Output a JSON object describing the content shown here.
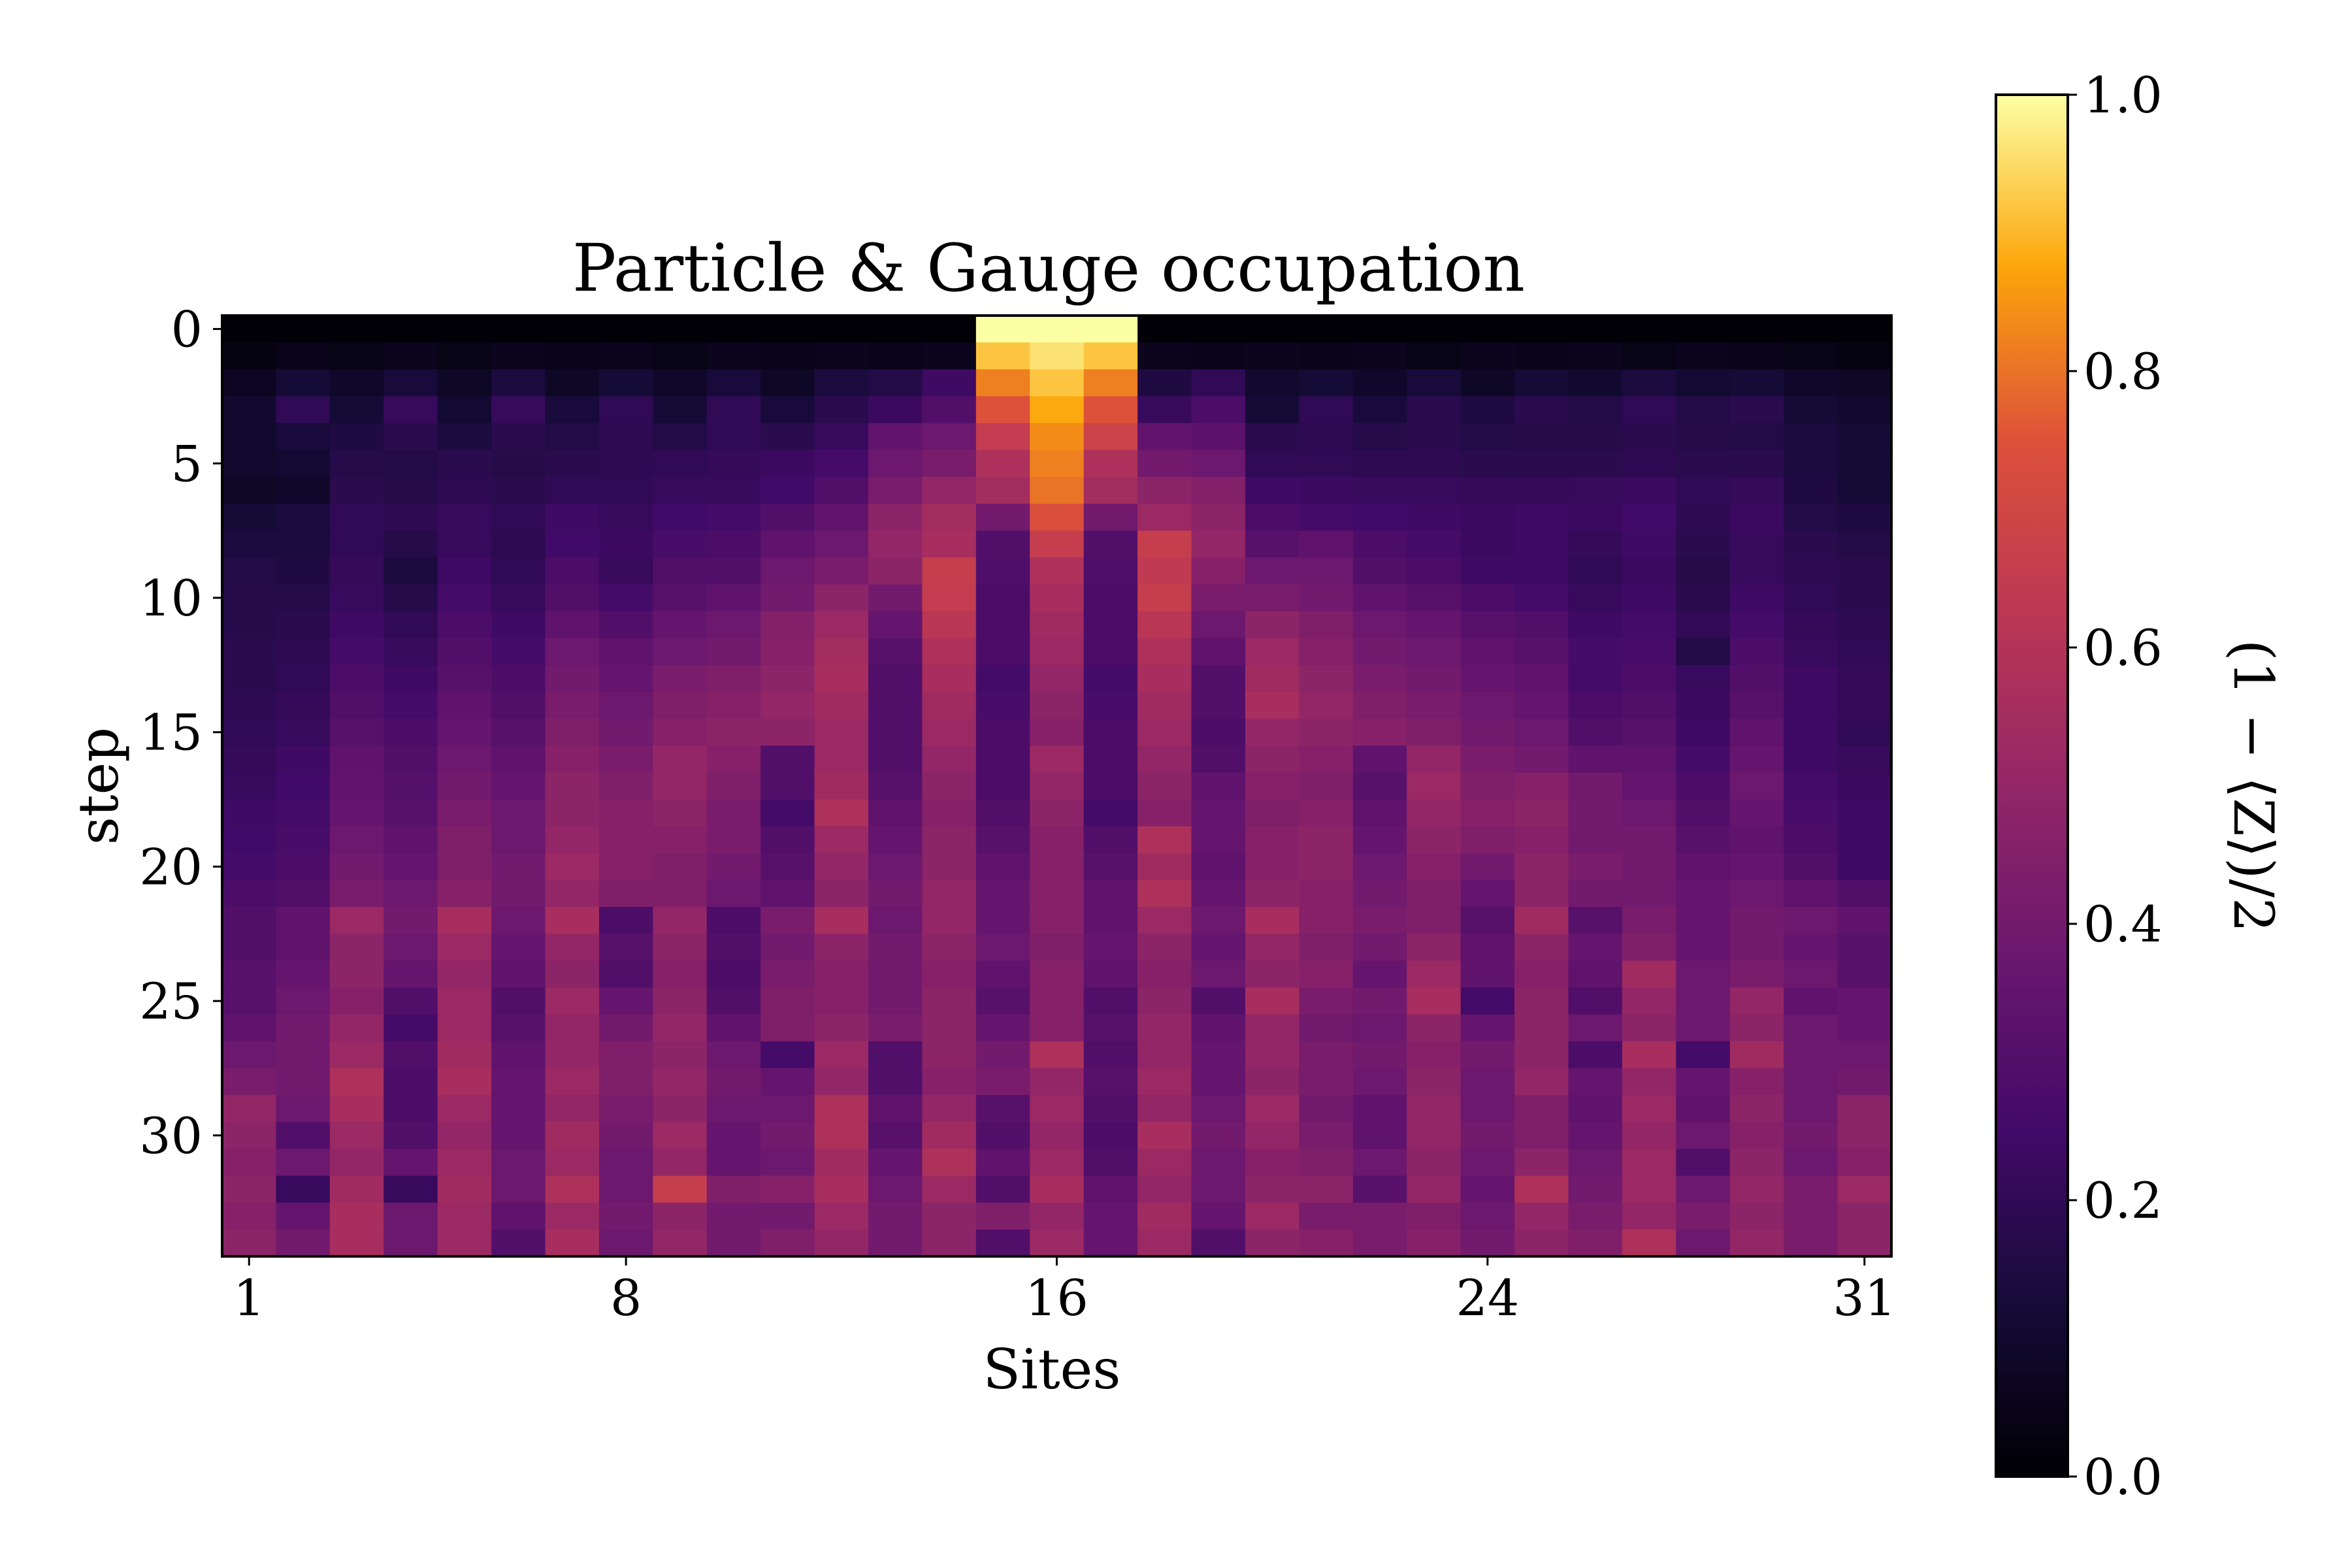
{
  "chart_data": {
    "type": "heatmap",
    "title": "Particle & Gauge occupation",
    "xlabel": "Sites",
    "ylabel": "step",
    "colorbar_label": "(1 − ⟨Z⟩)/2",
    "colormap": "inferno",
    "vmin": 0.0,
    "vmax": 1.0,
    "n_sites": 31,
    "n_steps": 35,
    "x_ticks": [
      1,
      8,
      16,
      24,
      31
    ],
    "y_ticks": [
      0,
      5,
      10,
      15,
      20,
      25,
      30
    ],
    "colorbar_ticks": [
      "0.0",
      "0.2",
      "0.4",
      "0.6",
      "0.8",
      "1.0"
    ],
    "rows": [
      [
        0.01,
        0.01,
        0.01,
        0.01,
        0.01,
        0.01,
        0.01,
        0.01,
        0.01,
        0.01,
        0.01,
        0.01,
        0.01,
        0.01,
        1.0,
        1.0,
        1.0,
        0.01,
        0.01,
        0.01,
        0.01,
        0.01,
        0.01,
        0.01,
        0.01,
        0.01,
        0.01,
        0.01,
        0.01,
        0.01,
        0.01
      ],
      [
        0.03,
        0.05,
        0.04,
        0.06,
        0.04,
        0.06,
        0.05,
        0.06,
        0.04,
        0.06,
        0.05,
        0.06,
        0.05,
        0.06,
        0.92,
        0.96,
        0.92,
        0.06,
        0.05,
        0.06,
        0.05,
        0.06,
        0.04,
        0.06,
        0.05,
        0.06,
        0.04,
        0.06,
        0.05,
        0.04,
        0.03
      ],
      [
        0.07,
        0.12,
        0.09,
        0.13,
        0.08,
        0.14,
        0.08,
        0.12,
        0.09,
        0.13,
        0.08,
        0.14,
        0.16,
        0.24,
        0.82,
        0.92,
        0.82,
        0.15,
        0.2,
        0.1,
        0.12,
        0.09,
        0.13,
        0.08,
        0.12,
        0.1,
        0.14,
        0.11,
        0.12,
        0.09,
        0.08
      ],
      [
        0.1,
        0.2,
        0.12,
        0.22,
        0.11,
        0.22,
        0.13,
        0.2,
        0.12,
        0.2,
        0.13,
        0.18,
        0.23,
        0.3,
        0.75,
        0.88,
        0.75,
        0.22,
        0.28,
        0.12,
        0.2,
        0.13,
        0.18,
        0.15,
        0.18,
        0.16,
        0.2,
        0.16,
        0.18,
        0.12,
        0.1
      ],
      [
        0.1,
        0.13,
        0.15,
        0.18,
        0.14,
        0.18,
        0.16,
        0.19,
        0.16,
        0.2,
        0.18,
        0.22,
        0.35,
        0.38,
        0.65,
        0.84,
        0.68,
        0.35,
        0.33,
        0.18,
        0.19,
        0.17,
        0.18,
        0.16,
        0.17,
        0.17,
        0.18,
        0.17,
        0.16,
        0.14,
        0.12
      ],
      [
        0.1,
        0.11,
        0.17,
        0.16,
        0.18,
        0.17,
        0.18,
        0.19,
        0.2,
        0.21,
        0.23,
        0.26,
        0.38,
        0.42,
        0.58,
        0.82,
        0.58,
        0.4,
        0.38,
        0.2,
        0.2,
        0.19,
        0.19,
        0.18,
        0.18,
        0.18,
        0.19,
        0.18,
        0.18,
        0.14,
        0.12
      ],
      [
        0.08,
        0.09,
        0.18,
        0.17,
        0.19,
        0.18,
        0.2,
        0.2,
        0.22,
        0.22,
        0.25,
        0.3,
        0.42,
        0.5,
        0.55,
        0.8,
        0.55,
        0.48,
        0.45,
        0.24,
        0.23,
        0.22,
        0.22,
        0.21,
        0.21,
        0.22,
        0.23,
        0.2,
        0.21,
        0.15,
        0.12
      ],
      [
        0.12,
        0.14,
        0.2,
        0.19,
        0.22,
        0.2,
        0.24,
        0.22,
        0.25,
        0.26,
        0.3,
        0.35,
        0.48,
        0.55,
        0.4,
        0.74,
        0.4,
        0.52,
        0.48,
        0.28,
        0.26,
        0.25,
        0.24,
        0.23,
        0.24,
        0.23,
        0.25,
        0.19,
        0.23,
        0.16,
        0.15
      ],
      [
        0.14,
        0.14,
        0.2,
        0.17,
        0.22,
        0.19,
        0.25,
        0.23,
        0.27,
        0.28,
        0.34,
        0.38,
        0.5,
        0.56,
        0.3,
        0.66,
        0.3,
        0.66,
        0.5,
        0.32,
        0.34,
        0.28,
        0.26,
        0.23,
        0.24,
        0.21,
        0.24,
        0.18,
        0.22,
        0.18,
        0.16
      ],
      [
        0.16,
        0.15,
        0.21,
        0.14,
        0.24,
        0.2,
        0.28,
        0.22,
        0.3,
        0.3,
        0.38,
        0.42,
        0.48,
        0.66,
        0.29,
        0.58,
        0.29,
        0.64,
        0.46,
        0.38,
        0.38,
        0.3,
        0.28,
        0.24,
        0.24,
        0.2,
        0.23,
        0.17,
        0.22,
        0.19,
        0.18
      ],
      [
        0.17,
        0.17,
        0.22,
        0.17,
        0.26,
        0.22,
        0.3,
        0.26,
        0.32,
        0.34,
        0.4,
        0.48,
        0.4,
        0.65,
        0.28,
        0.56,
        0.28,
        0.66,
        0.42,
        0.42,
        0.4,
        0.34,
        0.32,
        0.28,
        0.26,
        0.22,
        0.24,
        0.18,
        0.24,
        0.2,
        0.18
      ],
      [
        0.17,
        0.18,
        0.24,
        0.2,
        0.28,
        0.24,
        0.34,
        0.3,
        0.36,
        0.38,
        0.45,
        0.52,
        0.36,
        0.62,
        0.28,
        0.54,
        0.28,
        0.62,
        0.38,
        0.48,
        0.44,
        0.38,
        0.36,
        0.32,
        0.3,
        0.24,
        0.26,
        0.2,
        0.26,
        0.21,
        0.19
      ],
      [
        0.18,
        0.19,
        0.26,
        0.22,
        0.3,
        0.26,
        0.38,
        0.34,
        0.38,
        0.4,
        0.46,
        0.55,
        0.32,
        0.58,
        0.28,
        0.52,
        0.28,
        0.58,
        0.34,
        0.52,
        0.46,
        0.4,
        0.38,
        0.34,
        0.32,
        0.26,
        0.27,
        0.16,
        0.28,
        0.22,
        0.2
      ],
      [
        0.18,
        0.2,
        0.28,
        0.24,
        0.32,
        0.28,
        0.4,
        0.36,
        0.42,
        0.44,
        0.48,
        0.56,
        0.3,
        0.56,
        0.26,
        0.5,
        0.26,
        0.56,
        0.3,
        0.54,
        0.48,
        0.42,
        0.4,
        0.36,
        0.34,
        0.26,
        0.28,
        0.22,
        0.3,
        0.24,
        0.21
      ],
      [
        0.19,
        0.21,
        0.3,
        0.26,
        0.34,
        0.3,
        0.42,
        0.38,
        0.44,
        0.46,
        0.5,
        0.54,
        0.3,
        0.54,
        0.27,
        0.48,
        0.27,
        0.54,
        0.3,
        0.56,
        0.5,
        0.44,
        0.42,
        0.38,
        0.36,
        0.28,
        0.3,
        0.23,
        0.32,
        0.24,
        0.21
      ],
      [
        0.2,
        0.22,
        0.32,
        0.28,
        0.36,
        0.32,
        0.44,
        0.4,
        0.46,
        0.48,
        0.48,
        0.52,
        0.3,
        0.52,
        0.28,
        0.46,
        0.28,
        0.52,
        0.28,
        0.5,
        0.48,
        0.46,
        0.44,
        0.4,
        0.38,
        0.3,
        0.32,
        0.24,
        0.34,
        0.24,
        0.2
      ],
      [
        0.21,
        0.24,
        0.34,
        0.3,
        0.38,
        0.34,
        0.46,
        0.42,
        0.5,
        0.46,
        0.3,
        0.52,
        0.3,
        0.5,
        0.28,
        0.52,
        0.28,
        0.5,
        0.3,
        0.48,
        0.46,
        0.34,
        0.5,
        0.42,
        0.4,
        0.34,
        0.34,
        0.26,
        0.36,
        0.24,
        0.22
      ],
      [
        0.22,
        0.25,
        0.35,
        0.31,
        0.4,
        0.36,
        0.48,
        0.44,
        0.5,
        0.44,
        0.3,
        0.54,
        0.32,
        0.48,
        0.28,
        0.5,
        0.28,
        0.48,
        0.34,
        0.46,
        0.44,
        0.32,
        0.52,
        0.44,
        0.46,
        0.4,
        0.36,
        0.28,
        0.38,
        0.26,
        0.23
      ],
      [
        0.24,
        0.26,
        0.36,
        0.32,
        0.42,
        0.38,
        0.48,
        0.46,
        0.48,
        0.42,
        0.26,
        0.58,
        0.34,
        0.46,
        0.3,
        0.48,
        0.26,
        0.46,
        0.36,
        0.44,
        0.46,
        0.34,
        0.5,
        0.46,
        0.48,
        0.4,
        0.38,
        0.3,
        0.36,
        0.27,
        0.24
      ],
      [
        0.25,
        0.27,
        0.38,
        0.34,
        0.44,
        0.38,
        0.5,
        0.46,
        0.46,
        0.42,
        0.3,
        0.52,
        0.36,
        0.48,
        0.32,
        0.46,
        0.3,
        0.58,
        0.36,
        0.46,
        0.48,
        0.36,
        0.48,
        0.44,
        0.46,
        0.4,
        0.4,
        0.32,
        0.34,
        0.28,
        0.24
      ],
      [
        0.26,
        0.28,
        0.4,
        0.36,
        0.44,
        0.4,
        0.52,
        0.46,
        0.44,
        0.4,
        0.32,
        0.5,
        0.38,
        0.48,
        0.34,
        0.46,
        0.32,
        0.54,
        0.34,
        0.46,
        0.48,
        0.38,
        0.46,
        0.4,
        0.48,
        0.42,
        0.4,
        0.34,
        0.36,
        0.3,
        0.24
      ],
      [
        0.28,
        0.3,
        0.42,
        0.38,
        0.46,
        0.4,
        0.5,
        0.44,
        0.44,
        0.38,
        0.34,
        0.48,
        0.4,
        0.5,
        0.36,
        0.46,
        0.34,
        0.58,
        0.36,
        0.48,
        0.46,
        0.4,
        0.44,
        0.36,
        0.48,
        0.4,
        0.4,
        0.36,
        0.38,
        0.34,
        0.3
      ],
      [
        0.3,
        0.34,
        0.52,
        0.4,
        0.56,
        0.38,
        0.56,
        0.28,
        0.5,
        0.28,
        0.42,
        0.56,
        0.38,
        0.5,
        0.36,
        0.46,
        0.34,
        0.52,
        0.38,
        0.56,
        0.46,
        0.42,
        0.44,
        0.32,
        0.54,
        0.32,
        0.42,
        0.36,
        0.4,
        0.38,
        0.34
      ],
      [
        0.3,
        0.34,
        0.48,
        0.38,
        0.52,
        0.36,
        0.5,
        0.32,
        0.48,
        0.3,
        0.4,
        0.48,
        0.4,
        0.48,
        0.38,
        0.44,
        0.36,
        0.48,
        0.36,
        0.5,
        0.44,
        0.4,
        0.48,
        0.34,
        0.48,
        0.36,
        0.44,
        0.36,
        0.4,
        0.36,
        0.32
      ],
      [
        0.32,
        0.36,
        0.48,
        0.36,
        0.5,
        0.34,
        0.48,
        0.3,
        0.46,
        0.28,
        0.42,
        0.46,
        0.4,
        0.46,
        0.34,
        0.46,
        0.34,
        0.46,
        0.38,
        0.48,
        0.46,
        0.36,
        0.52,
        0.34,
        0.46,
        0.34,
        0.54,
        0.38,
        0.42,
        0.38,
        0.32
      ],
      [
        0.32,
        0.38,
        0.46,
        0.3,
        0.52,
        0.3,
        0.52,
        0.36,
        0.48,
        0.3,
        0.44,
        0.46,
        0.4,
        0.48,
        0.32,
        0.46,
        0.3,
        0.48,
        0.3,
        0.56,
        0.42,
        0.4,
        0.56,
        0.26,
        0.48,
        0.3,
        0.5,
        0.38,
        0.5,
        0.34,
        0.36
      ],
      [
        0.34,
        0.4,
        0.5,
        0.26,
        0.52,
        0.32,
        0.5,
        0.4,
        0.5,
        0.34,
        0.44,
        0.48,
        0.42,
        0.48,
        0.36,
        0.46,
        0.32,
        0.5,
        0.34,
        0.5,
        0.4,
        0.38,
        0.48,
        0.36,
        0.48,
        0.38,
        0.48,
        0.38,
        0.48,
        0.38,
        0.36
      ],
      [
        0.38,
        0.4,
        0.52,
        0.3,
        0.54,
        0.34,
        0.5,
        0.44,
        0.48,
        0.38,
        0.26,
        0.52,
        0.3,
        0.48,
        0.4,
        0.58,
        0.3,
        0.5,
        0.36,
        0.5,
        0.42,
        0.4,
        0.46,
        0.4,
        0.48,
        0.28,
        0.56,
        0.26,
        0.54,
        0.38,
        0.38
      ],
      [
        0.42,
        0.4,
        0.58,
        0.28,
        0.56,
        0.36,
        0.52,
        0.44,
        0.5,
        0.4,
        0.36,
        0.5,
        0.3,
        0.46,
        0.42,
        0.5,
        0.32,
        0.52,
        0.36,
        0.48,
        0.42,
        0.38,
        0.48,
        0.38,
        0.5,
        0.36,
        0.5,
        0.36,
        0.46,
        0.38,
        0.4
      ],
      [
        0.5,
        0.38,
        0.56,
        0.28,
        0.52,
        0.36,
        0.5,
        0.42,
        0.48,
        0.38,
        0.38,
        0.58,
        0.34,
        0.5,
        0.32,
        0.52,
        0.3,
        0.5,
        0.38,
        0.52,
        0.4,
        0.34,
        0.5,
        0.38,
        0.44,
        0.34,
        0.52,
        0.34,
        0.48,
        0.38,
        0.48
      ],
      [
        0.48,
        0.3,
        0.52,
        0.3,
        0.5,
        0.36,
        0.54,
        0.4,
        0.52,
        0.36,
        0.4,
        0.58,
        0.32,
        0.54,
        0.3,
        0.5,
        0.28,
        0.56,
        0.4,
        0.5,
        0.42,
        0.34,
        0.5,
        0.4,
        0.44,
        0.36,
        0.5,
        0.38,
        0.46,
        0.4,
        0.48
      ],
      [
        0.46,
        0.38,
        0.5,
        0.36,
        0.52,
        0.38,
        0.52,
        0.38,
        0.5,
        0.36,
        0.38,
        0.54,
        0.36,
        0.58,
        0.34,
        0.52,
        0.3,
        0.52,
        0.38,
        0.46,
        0.44,
        0.38,
        0.48,
        0.38,
        0.48,
        0.38,
        0.52,
        0.3,
        0.48,
        0.38,
        0.46
      ],
      [
        0.48,
        0.22,
        0.54,
        0.22,
        0.54,
        0.38,
        0.58,
        0.38,
        0.66,
        0.44,
        0.46,
        0.56,
        0.38,
        0.52,
        0.3,
        0.56,
        0.34,
        0.5,
        0.38,
        0.48,
        0.48,
        0.32,
        0.5,
        0.36,
        0.58,
        0.4,
        0.52,
        0.38,
        0.5,
        0.42,
        0.52
      ],
      [
        0.46,
        0.36,
        0.56,
        0.38,
        0.52,
        0.34,
        0.52,
        0.4,
        0.48,
        0.4,
        0.4,
        0.52,
        0.4,
        0.48,
        0.44,
        0.5,
        0.36,
        0.54,
        0.36,
        0.52,
        0.42,
        0.42,
        0.44,
        0.38,
        0.5,
        0.42,
        0.5,
        0.42,
        0.48,
        0.42,
        0.48
      ],
      [
        0.48,
        0.4,
        0.56,
        0.38,
        0.52,
        0.3,
        0.56,
        0.38,
        0.5,
        0.4,
        0.44,
        0.5,
        0.4,
        0.48,
        0.3,
        0.52,
        0.36,
        0.52,
        0.3,
        0.48,
        0.46,
        0.42,
        0.46,
        0.4,
        0.48,
        0.44,
        0.58,
        0.38,
        0.5,
        0.42,
        0.48
      ]
    ]
  }
}
